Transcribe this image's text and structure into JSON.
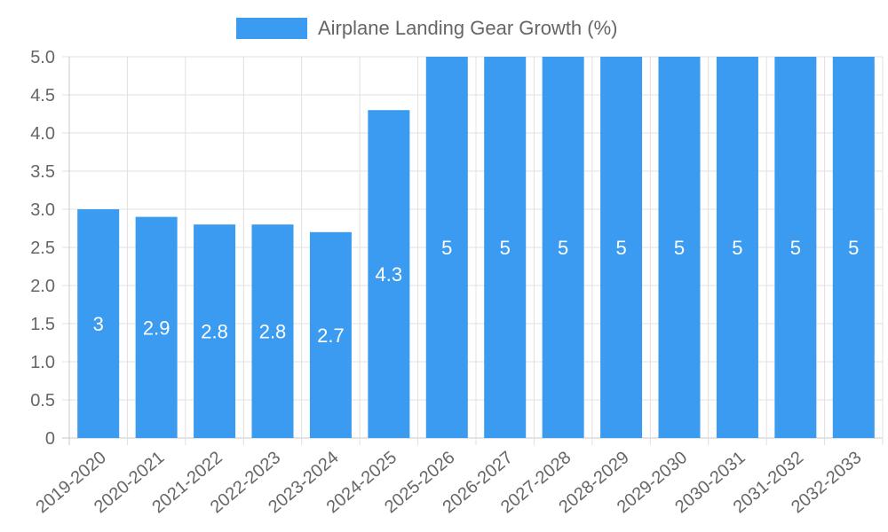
{
  "chart_data": {
    "type": "bar",
    "categories": [
      "2019-2020",
      "2020-2021",
      "2021-2022",
      "2022-2023",
      "2023-2024",
      "2024-2025",
      "2025-2026",
      "2026-2027",
      "2027-2028",
      "2028-2029",
      "2029-2030",
      "2030-2031",
      "2031-2032",
      "2032-2033"
    ],
    "series": [
      {
        "name": "Airplane Landing Gear Growth (%)",
        "values": [
          3,
          2.9,
          2.8,
          2.8,
          2.7,
          4.3,
          5,
          5,
          5,
          5,
          5,
          5,
          5,
          5
        ]
      }
    ],
    "value_labels": [
      "3",
      "2.9",
      "2.8",
      "2.8",
      "2.7",
      "4.3",
      "5",
      "5",
      "5",
      "5",
      "5",
      "5",
      "5",
      "5"
    ],
    "y_ticks": [
      "0",
      "0.5",
      "1.0",
      "1.5",
      "2.0",
      "2.5",
      "3.0",
      "3.5",
      "4.0",
      "4.5",
      "5.0"
    ],
    "ylim": [
      0,
      5
    ],
    "title": "",
    "xlabel": "",
    "ylabel": "",
    "grid": true,
    "legend_position": "top-center",
    "colors": {
      "bar": "#3a9bf0",
      "grid": "#e0e0e0",
      "axis": "#c8c8c8",
      "text": "#666666"
    }
  }
}
